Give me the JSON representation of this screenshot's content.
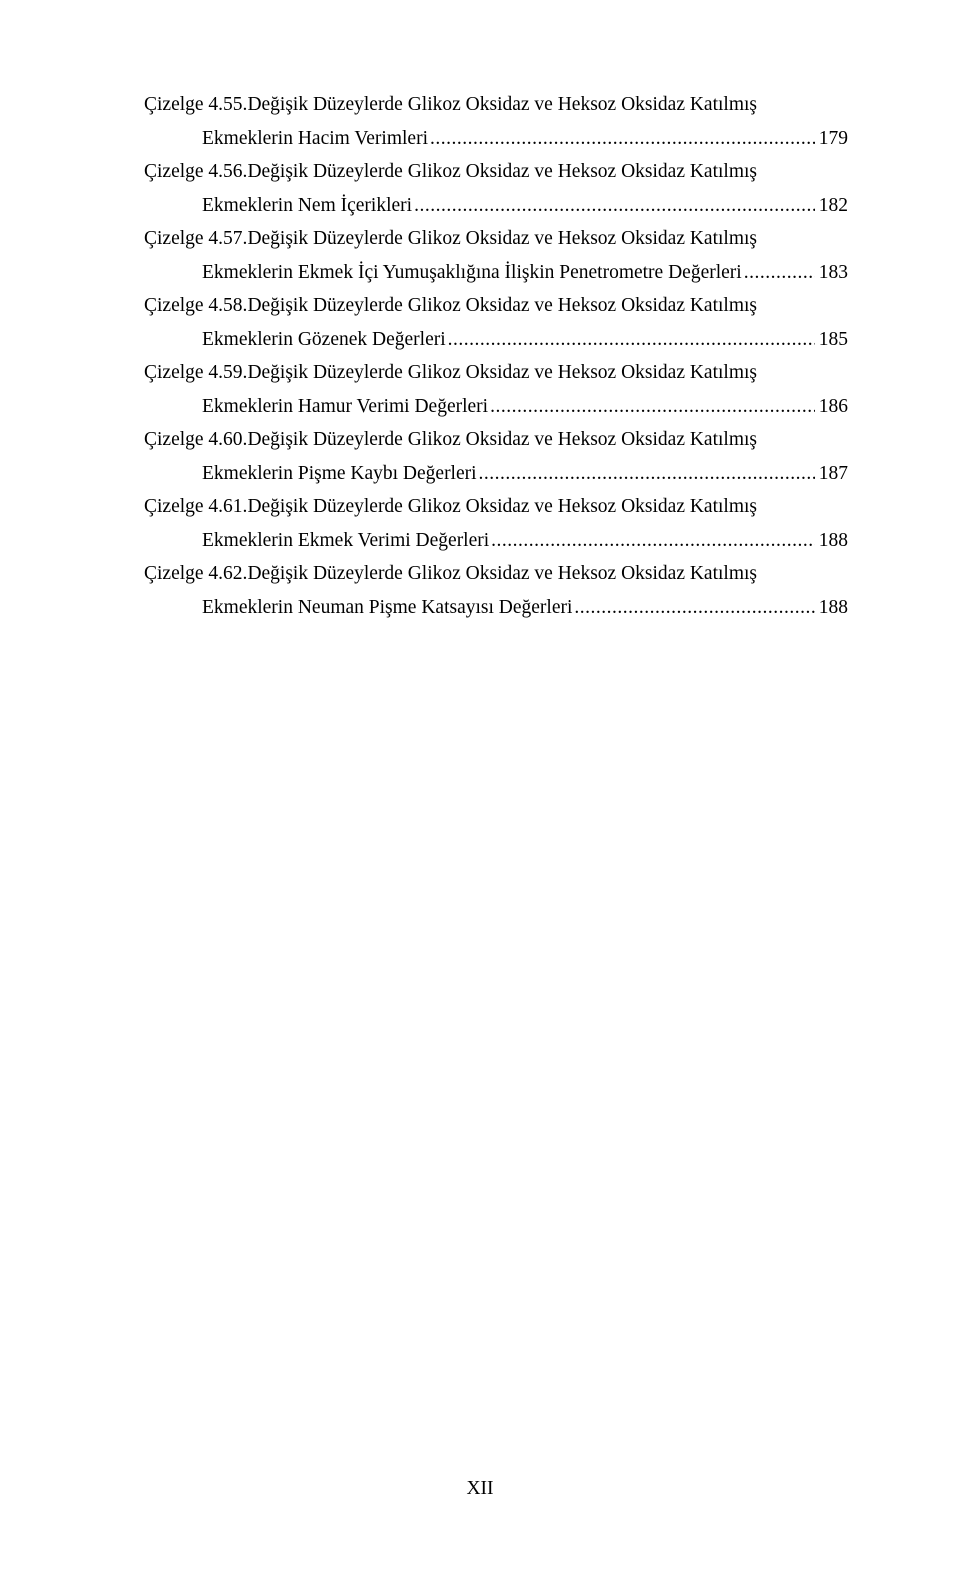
{
  "page": {
    "background_color": "#ffffff",
    "text_color": "#000000",
    "font_family": "Times New Roman",
    "font_size_pt": 12,
    "footer": "XII"
  },
  "toc": {
    "entries": [
      {
        "label": "Çizelge 4.55.",
        "title_line1": " Değişik Düzeylerde Glikoz Oksidaz ve Heksoz Oksidaz Katılmış",
        "title_line2": "Ekmeklerin Hacim Verimleri",
        "page": "179"
      },
      {
        "label": "Çizelge 4.56.",
        "title_line1": " Değişik Düzeylerde Glikoz Oksidaz ve Heksoz Oksidaz Katılmış",
        "title_line2": "Ekmeklerin Nem İçerikleri",
        "page": "182"
      },
      {
        "label": "Çizelge 4.57.",
        "title_line1": " Değişik Düzeylerde Glikoz Oksidaz ve Heksoz Oksidaz Katılmış",
        "title_line2": "Ekmeklerin Ekmek İçi Yumuşaklığına İlişkin Penetrometre Değerleri",
        "page": "183"
      },
      {
        "label": "Çizelge 4.58.",
        "title_line1": " Değişik Düzeylerde Glikoz Oksidaz ve Heksoz Oksidaz Katılmış",
        "title_line2": "Ekmeklerin Gözenek Değerleri",
        "page": "185"
      },
      {
        "label": "Çizelge 4.59.",
        "title_line1": " Değişik Düzeylerde Glikoz Oksidaz ve Heksoz Oksidaz Katılmış",
        "title_line2": "Ekmeklerin Hamur Verimi Değerleri",
        "page": "186"
      },
      {
        "label": "Çizelge 4.60.",
        "title_line1": " Değişik Düzeylerde Glikoz Oksidaz ve Heksoz Oksidaz Katılmış",
        "title_line2": "Ekmeklerin Pişme Kaybı Değerleri",
        "page": "187"
      },
      {
        "label": "Çizelge 4.61.",
        "title_line1": " Değişik Düzeylerde Glikoz Oksidaz ve Heksoz Oksidaz Katılmış",
        "title_line2": "Ekmeklerin Ekmek Verimi Değerleri",
        "page": "188"
      },
      {
        "label": "Çizelge 4.62.",
        "title_line1": " Değişik Düzeylerde Glikoz Oksidaz ve Heksoz Oksidaz Katılmış",
        "title_line2": "Ekmeklerin Neuman Pişme Katsayısı Değerleri",
        "page": "188"
      }
    ]
  }
}
